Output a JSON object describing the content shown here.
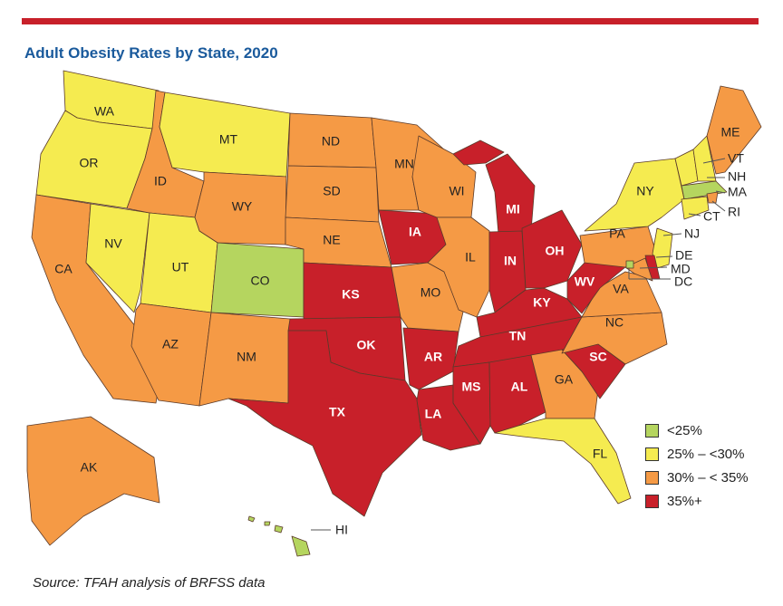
{
  "title": "Adult Obesity Rates by State, 2020",
  "source": "Source: TFAH analysis of BRFSS data",
  "colors": {
    "lt25": "#b5d55f",
    "25to30": "#f5eb50",
    "30to35": "#f59a45",
    "35plus": "#c8202a"
  },
  "legend": [
    {
      "key": "lt25",
      "label": "<25%"
    },
    {
      "key": "25to30",
      "label": "25% – <30%"
    },
    {
      "key": "30to35",
      "label": "30% – < 35%"
    },
    {
      "key": "35plus",
      "label": "35%+"
    }
  ],
  "states": {
    "WA": "25to30",
    "OR": "25to30",
    "CA": "30to35",
    "NV": "25to30",
    "ID": "30to35",
    "MT": "25to30",
    "WY": "30to35",
    "UT": "25to30",
    "CO": "lt25",
    "AZ": "30to35",
    "NM": "30to35",
    "ND": "30to35",
    "SD": "30to35",
    "NE": "30to35",
    "KS": "35plus",
    "OK": "35plus",
    "TX": "35plus",
    "MN": "30to35",
    "IA": "35plus",
    "MO": "30to35",
    "AR": "35plus",
    "LA": "35plus",
    "WI": "30to35",
    "IL": "30to35",
    "MI": "35plus",
    "IN": "35plus",
    "OH": "35plus",
    "KY": "35plus",
    "TN": "35plus",
    "MS": "35plus",
    "AL": "35plus",
    "GA": "30to35",
    "FL": "25to30",
    "SC": "35plus",
    "NC": "30to35",
    "VA": "30to35",
    "WV": "35plus",
    "PA": "30to35",
    "NY": "25to30",
    "VT": "25to30",
    "NH": "25to30",
    "ME": "30to35",
    "MA": "lt25",
    "RI": "30to35",
    "CT": "25to30",
    "NJ": "25to30",
    "DE": "35plus",
    "MD": "30to35",
    "DC": "lt25",
    "AK": "30to35",
    "HI": "lt25"
  },
  "labels": {
    "WA": "WA",
    "OR": "OR",
    "CA": "CA",
    "NV": "NV",
    "ID": "ID",
    "MT": "MT",
    "WY": "WY",
    "UT": "UT",
    "CO": "CO",
    "AZ": "AZ",
    "NM": "NM",
    "ND": "ND",
    "SD": "SD",
    "NE": "NE",
    "KS": "KS",
    "OK": "OK",
    "TX": "TX",
    "MN": "MN",
    "IA": "IA",
    "MO": "MO",
    "AR": "AR",
    "LA": "LA",
    "WI": "WI",
    "IL": "IL",
    "MI": "MI",
    "IN": "IN",
    "OH": "OH",
    "KY": "KY",
    "TN": "TN",
    "MS": "MS",
    "AL": "AL",
    "GA": "GA",
    "FL": "FL",
    "SC": "SC",
    "NC": "NC",
    "VA": "VA",
    "WV": "WV",
    "PA": "PA",
    "NY": "NY",
    "VT": "VT",
    "NH": "NH",
    "ME": "ME",
    "MA": "MA",
    "RI": "RI",
    "CT": "CT",
    "NJ": "NJ",
    "DE": "DE",
    "MD": "MD",
    "DC": "DC",
    "AK": "AK",
    "HI": "HI"
  }
}
